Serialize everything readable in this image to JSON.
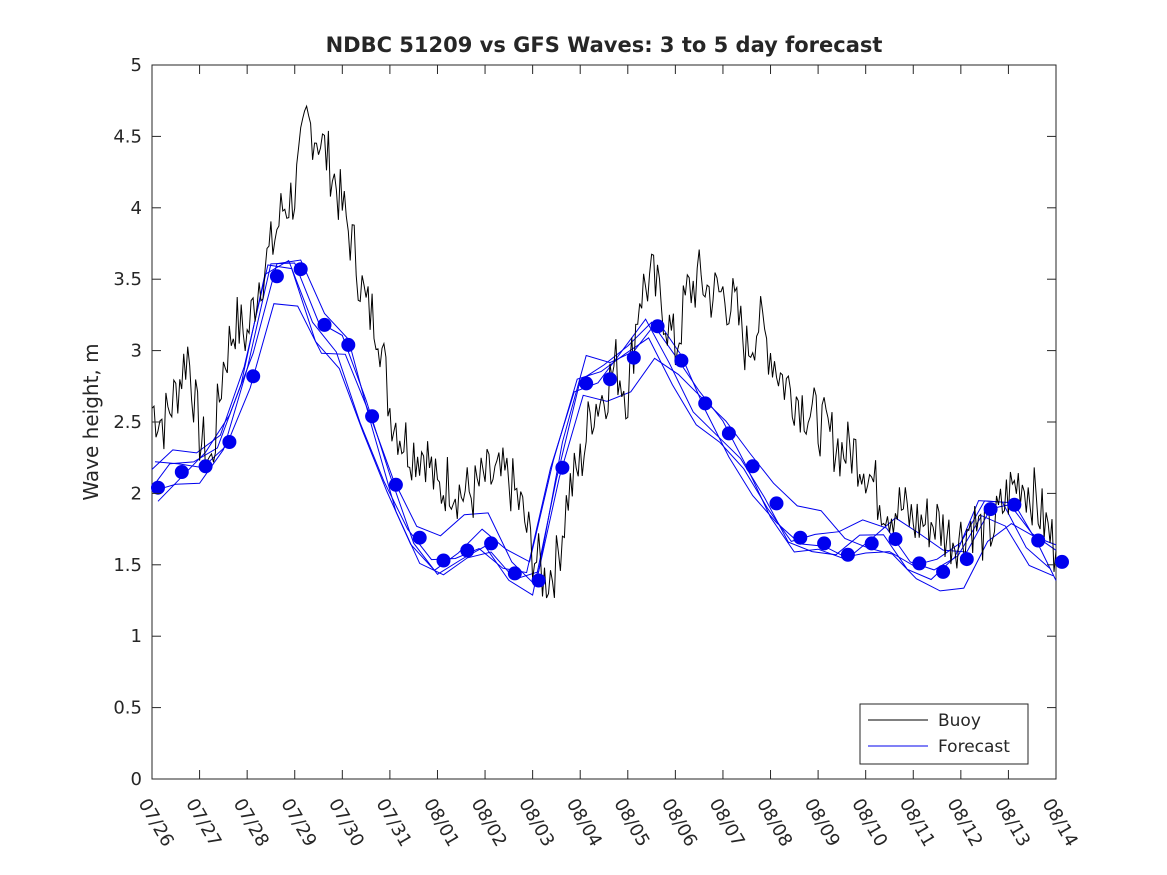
{
  "chart_data": {
    "type": "line",
    "title": "NDBC 51209 vs GFS Waves: 3 to 5 day forecast",
    "xlabel": "",
    "ylabel": "Wave height, m",
    "xlim": [
      "07/26",
      "08/14"
    ],
    "ylim": [
      0,
      5
    ],
    "x_ticks": [
      "07/26",
      "07/27",
      "07/28",
      "07/29",
      "07/30",
      "07/31",
      "08/01",
      "08/02",
      "08/03",
      "08/04",
      "08/05",
      "08/06",
      "08/07",
      "08/08",
      "08/09",
      "08/10",
      "08/11",
      "08/12",
      "08/13",
      "08/14"
    ],
    "y_ticks": [
      "0",
      "0.5",
      "1",
      "1.5",
      "2",
      "2.5",
      "3",
      "3.5",
      "4",
      "4.5",
      "5"
    ],
    "grid": false,
    "legend_position": "bottom-right",
    "series": [
      {
        "name": "Buoy",
        "color": "#000000",
        "x": [
          "07/26",
          "07/26 06:00",
          "07/26 12:00",
          "07/26 18:00",
          "07/27",
          "07/27 06:00",
          "07/27 12:00",
          "07/27 18:00",
          "07/28",
          "07/28 06:00",
          "07/28 12:00",
          "07/28 18:00",
          "07/29",
          "07/29 06:00",
          "07/29 12:00",
          "07/29 18:00",
          "07/30",
          "07/30 06:00",
          "07/30 12:00",
          "07/30 18:00",
          "07/31",
          "07/31 06:00",
          "07/31 12:00",
          "07/31 18:00",
          "08/01",
          "08/01 06:00",
          "08/01 12:00",
          "08/01 18:00",
          "08/02",
          "08/02 06:00",
          "08/02 12:00",
          "08/02 18:00",
          "08/03",
          "08/03 06:00",
          "08/03 12:00",
          "08/03 18:00",
          "08/04",
          "08/04 06:00",
          "08/04 12:00",
          "08/04 18:00",
          "08/05",
          "08/05 06:00",
          "08/05 12:00",
          "08/05 18:00",
          "08/06",
          "08/06 06:00",
          "08/06 12:00",
          "08/06 18:00",
          "08/07",
          "08/07 06:00",
          "08/07 12:00",
          "08/07 18:00",
          "08/08",
          "08/08 06:00",
          "08/08 12:00",
          "08/08 18:00",
          "08/09",
          "08/09 06:00",
          "08/09 12:00",
          "08/09 18:00",
          "08/10",
          "08/10 06:00",
          "08/10 12:00",
          "08/10 18:00",
          "08/11",
          "08/11 06:00",
          "08/11 12:00",
          "08/11 18:00",
          "08/12",
          "08/12 06:00",
          "08/12 12:00",
          "08/12 18:00",
          "08/13",
          "08/13 06:00",
          "08/13 12:00",
          "08/13 18:00",
          "08/14"
        ],
        "values": [
          2.6,
          2.5,
          2.7,
          3.0,
          2.4,
          2.2,
          2.9,
          3.2,
          3.1,
          3.5,
          3.7,
          4.0,
          4.1,
          4.6,
          4.5,
          4.3,
          4.0,
          3.7,
          3.3,
          3.2,
          2.6,
          2.4,
          2.3,
          2.3,
          2.0,
          2.1,
          2.0,
          2.0,
          2.1,
          2.1,
          2.1,
          1.9,
          1.6,
          1.4,
          1.5,
          2.0,
          2.2,
          2.6,
          2.7,
          2.9,
          2.7,
          3.4,
          3.5,
          3.3,
          3.0,
          3.4,
          3.5,
          3.4,
          3.4,
          3.3,
          3.0,
          3.2,
          3.0,
          2.8,
          2.7,
          2.6,
          2.5,
          2.4,
          2.3,
          2.3,
          2.2,
          2.0,
          1.9,
          1.9,
          1.8,
          1.8,
          1.8,
          1.7,
          1.7,
          1.8,
          1.7,
          1.8,
          2.0,
          2.1,
          2.0,
          1.8,
          1.6
        ]
      },
      {
        "name": "Forecast",
        "color": "#0000ee",
        "x": [
          "07/26",
          "07/26 12:00",
          "07/27",
          "07/27 12:00",
          "07/28",
          "07/28 12:00",
          "07/29",
          "07/29 12:00",
          "07/30",
          "07/30 12:00",
          "07/31",
          "07/31 12:00",
          "08/01",
          "08/01 12:00",
          "08/02",
          "08/02 12:00",
          "08/03",
          "08/03 12:00",
          "08/04",
          "08/04 12:00",
          "08/05",
          "08/05 12:00",
          "08/06",
          "08/06 12:00",
          "08/07",
          "08/07 12:00",
          "08/08",
          "08/08 12:00",
          "08/09",
          "08/09 12:00",
          "08/10",
          "08/10 12:00",
          "08/11",
          "08/11 12:00",
          "08/12",
          "08/12 12:00",
          "08/13",
          "08/13 12:00",
          "08/14"
        ],
        "values": [
          2.04,
          2.15,
          2.19,
          2.36,
          2.82,
          3.52,
          3.57,
          3.18,
          3.04,
          2.54,
          2.06,
          1.69,
          1.53,
          1.6,
          1.65,
          1.44,
          1.39,
          2.18,
          2.77,
          2.8,
          2.95,
          3.17,
          2.93,
          2.63,
          2.42,
          2.19,
          1.93,
          1.69,
          1.65,
          1.57,
          1.65,
          1.68,
          1.51,
          1.45,
          1.54,
          1.89,
          1.92,
          1.67,
          1.52
        ]
      }
    ]
  },
  "legend": {
    "items": [
      {
        "label": "Buoy",
        "color": "#000000"
      },
      {
        "label": "Forecast",
        "color": "#0000ee"
      }
    ]
  }
}
